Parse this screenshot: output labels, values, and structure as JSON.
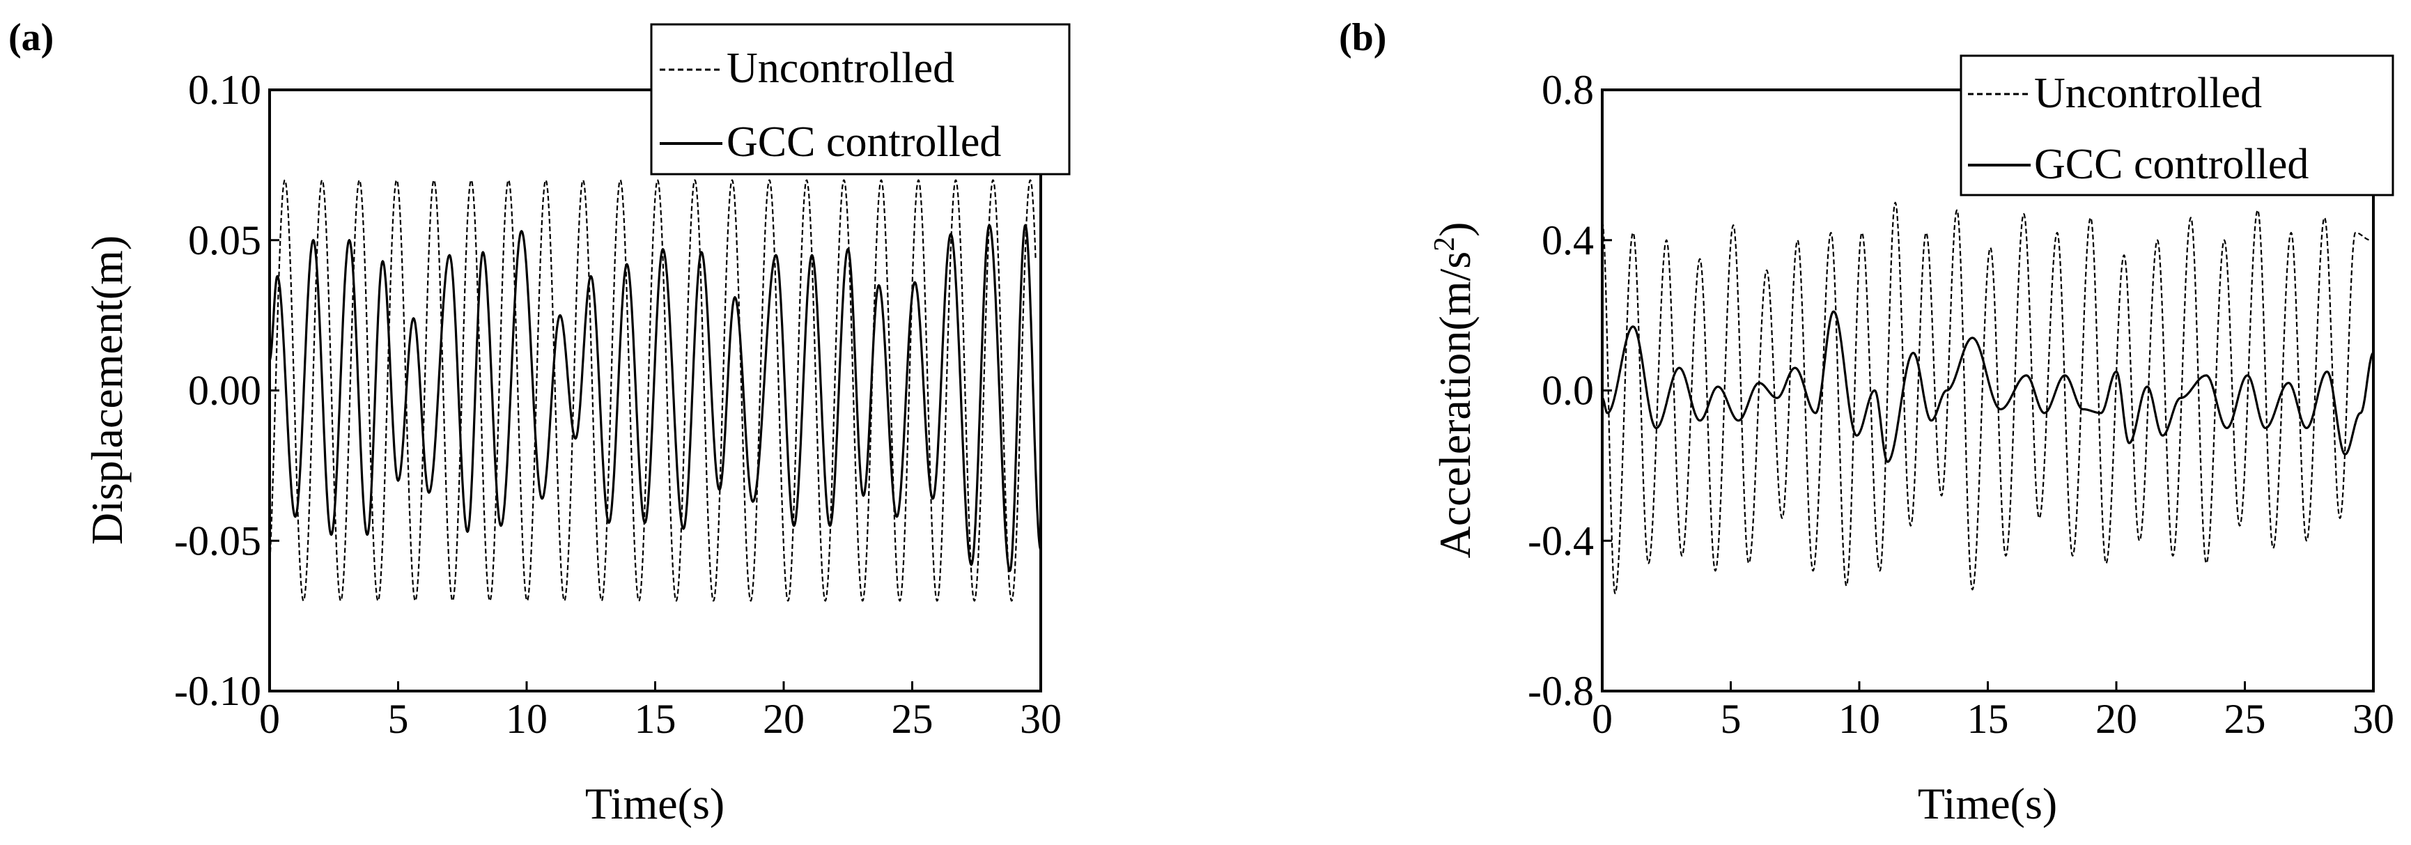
{
  "chart_data": [
    {
      "type": "line",
      "panel_label": "(a)",
      "xlabel": "Time(s)",
      "ylabel": "Displacement(m)",
      "xlim": [
        0,
        30
      ],
      "ylim": [
        -0.1,
        0.1
      ],
      "xticks": [
        0,
        5,
        10,
        15,
        20,
        25,
        30
      ],
      "xtick_labels": [
        "0",
        "5",
        "10",
        "15",
        "20",
        "25",
        "30"
      ],
      "yticks": [
        -0.1,
        -0.05,
        0.0,
        0.05,
        0.1
      ],
      "ytick_labels": [
        "-0.10",
        "-0.05",
        "0.00",
        "0.05",
        "0.10"
      ],
      "legend_position": "top-right",
      "series": [
        {
          "name": "Uncontrolled",
          "style": "dashed",
          "model": "sine",
          "t_start": 0.0,
          "t_end": 29.8,
          "period": 1.45,
          "amplitude": 0.07,
          "phase": -1.0
        },
        {
          "name": "GCC controlled",
          "style": "solid",
          "model": "extrema",
          "t_start": 0.0,
          "t_end": 30.0,
          "start_value": 0.01,
          "end_value": -0.053,
          "extrema": [
            [
              0.3,
              0.038
            ],
            [
              1.0,
              -0.042
            ],
            [
              1.7,
              0.05
            ],
            [
              2.4,
              -0.048
            ],
            [
              3.1,
              0.05
            ],
            [
              3.8,
              -0.048
            ],
            [
              4.4,
              0.043
            ],
            [
              5.0,
              -0.03
            ],
            [
              5.6,
              0.024
            ],
            [
              6.2,
              -0.034
            ],
            [
              7.0,
              0.045
            ],
            [
              7.7,
              -0.047
            ],
            [
              8.3,
              0.046
            ],
            [
              9.0,
              -0.045
            ],
            [
              9.8,
              0.053
            ],
            [
              10.6,
              -0.036
            ],
            [
              11.3,
              0.025
            ],
            [
              11.9,
              -0.016
            ],
            [
              12.5,
              0.038
            ],
            [
              13.2,
              -0.044
            ],
            [
              13.9,
              0.042
            ],
            [
              14.6,
              -0.044
            ],
            [
              15.3,
              0.047
            ],
            [
              16.1,
              -0.046
            ],
            [
              16.8,
              0.046
            ],
            [
              17.5,
              -0.033
            ],
            [
              18.1,
              0.031
            ],
            [
              18.8,
              -0.037
            ],
            [
              19.7,
              0.045
            ],
            [
              20.4,
              -0.045
            ],
            [
              21.1,
              0.045
            ],
            [
              21.8,
              -0.045
            ],
            [
              22.5,
              0.047
            ],
            [
              23.1,
              -0.035
            ],
            [
              23.7,
              0.035
            ],
            [
              24.4,
              -0.042
            ],
            [
              25.1,
              0.036
            ],
            [
              25.8,
              -0.036
            ],
            [
              26.5,
              0.052
            ],
            [
              27.3,
              -0.058
            ],
            [
              28.0,
              0.055
            ],
            [
              28.8,
              -0.06
            ],
            [
              29.4,
              0.055
            ]
          ]
        }
      ]
    },
    {
      "type": "line",
      "panel_label": "(b)",
      "xlabel": "Time(s)",
      "ylabel": "Acceleration(m/s",
      "ylabel_superscript": "2",
      "ylabel_suffix": ")",
      "xlim": [
        0,
        30
      ],
      "ylim": [
        -0.8,
        0.8
      ],
      "xticks": [
        0,
        5,
        10,
        15,
        20,
        25,
        30
      ],
      "xtick_labels": [
        "0",
        "5",
        "10",
        "15",
        "20",
        "25",
        "30"
      ],
      "yticks": [
        -0.8,
        -0.4,
        0.0,
        0.4,
        0.8
      ],
      "ytick_labels": [
        "-0.8",
        "-0.4",
        "0.0",
        "0.4",
        "0.8"
      ],
      "legend_position": "top-right",
      "series": [
        {
          "name": "Uncontrolled",
          "style": "dashed",
          "model": "extrema",
          "t_start": 0.0,
          "t_end": 29.9,
          "start_value": 0.45,
          "end_value": 0.4,
          "extrema": [
            [
              0.5,
              -0.54
            ],
            [
              1.2,
              0.42
            ],
            [
              1.8,
              -0.46
            ],
            [
              2.5,
              0.4
            ],
            [
              3.1,
              -0.44
            ],
            [
              3.8,
              0.35
            ],
            [
              4.4,
              -0.48
            ],
            [
              5.1,
              0.44
            ],
            [
              5.7,
              -0.46
            ],
            [
              6.4,
              0.32
            ],
            [
              7.0,
              -0.34
            ],
            [
              7.6,
              0.4
            ],
            [
              8.2,
              -0.48
            ],
            [
              8.9,
              0.42
            ],
            [
              9.5,
              -0.52
            ],
            [
              10.1,
              0.42
            ],
            [
              10.8,
              -0.48
            ],
            [
              11.4,
              0.5
            ],
            [
              12.0,
              -0.36
            ],
            [
              12.6,
              0.42
            ],
            [
              13.2,
              -0.28
            ],
            [
              13.8,
              0.48
            ],
            [
              14.4,
              -0.53
            ],
            [
              15.1,
              0.38
            ],
            [
              15.7,
              -0.44
            ],
            [
              16.4,
              0.47
            ],
            [
              17.0,
              -0.34
            ],
            [
              17.7,
              0.42
            ],
            [
              18.3,
              -0.44
            ],
            [
              19.0,
              0.46
            ],
            [
              19.6,
              -0.46
            ],
            [
              20.3,
              0.36
            ],
            [
              20.9,
              -0.4
            ],
            [
              21.6,
              0.4
            ],
            [
              22.2,
              -0.44
            ],
            [
              22.9,
              0.46
            ],
            [
              23.5,
              -0.46
            ],
            [
              24.2,
              0.4
            ],
            [
              24.8,
              -0.36
            ],
            [
              25.5,
              0.48
            ],
            [
              26.1,
              -0.42
            ],
            [
              26.8,
              0.42
            ],
            [
              27.4,
              -0.4
            ],
            [
              28.1,
              0.46
            ],
            [
              28.7,
              -0.34
            ],
            [
              29.3,
              0.42
            ]
          ]
        },
        {
          "name": "GCC controlled",
          "style": "solid",
          "model": "extrema",
          "t_start": 0.0,
          "t_end": 30.0,
          "start_value": -0.02,
          "end_value": 0.1,
          "extrema": [
            [
              0.2,
              -0.06
            ],
            [
              1.2,
              0.17
            ],
            [
              2.1,
              -0.1
            ],
            [
              3.0,
              0.06
            ],
            [
              3.8,
              -0.08
            ],
            [
              4.5,
              0.01
            ],
            [
              5.3,
              -0.08
            ],
            [
              6.1,
              0.02
            ],
            [
              6.8,
              -0.02
            ],
            [
              7.5,
              0.06
            ],
            [
              8.3,
              -0.06
            ],
            [
              9.0,
              0.21
            ],
            [
              9.9,
              -0.12
            ],
            [
              10.6,
              0.0
            ],
            [
              11.1,
              -0.19
            ],
            [
              12.1,
              0.1
            ],
            [
              12.8,
              -0.08
            ],
            [
              13.4,
              0.0
            ],
            [
              14.4,
              0.14
            ],
            [
              15.5,
              -0.05
            ],
            [
              16.5,
              0.04
            ],
            [
              17.2,
              -0.06
            ],
            [
              18.0,
              0.04
            ],
            [
              18.7,
              -0.05
            ],
            [
              19.4,
              -0.06
            ],
            [
              20.0,
              0.05
            ],
            [
              20.5,
              -0.14
            ],
            [
              21.2,
              0.01
            ],
            [
              21.8,
              -0.12
            ],
            [
              22.5,
              -0.02
            ],
            [
              23.5,
              0.04
            ],
            [
              24.3,
              -0.1
            ],
            [
              25.1,
              0.04
            ],
            [
              25.8,
              -0.1
            ],
            [
              26.7,
              0.02
            ],
            [
              27.4,
              -0.1
            ],
            [
              28.2,
              0.05
            ],
            [
              28.9,
              -0.17
            ],
            [
              29.5,
              -0.06
            ]
          ]
        }
      ]
    }
  ]
}
